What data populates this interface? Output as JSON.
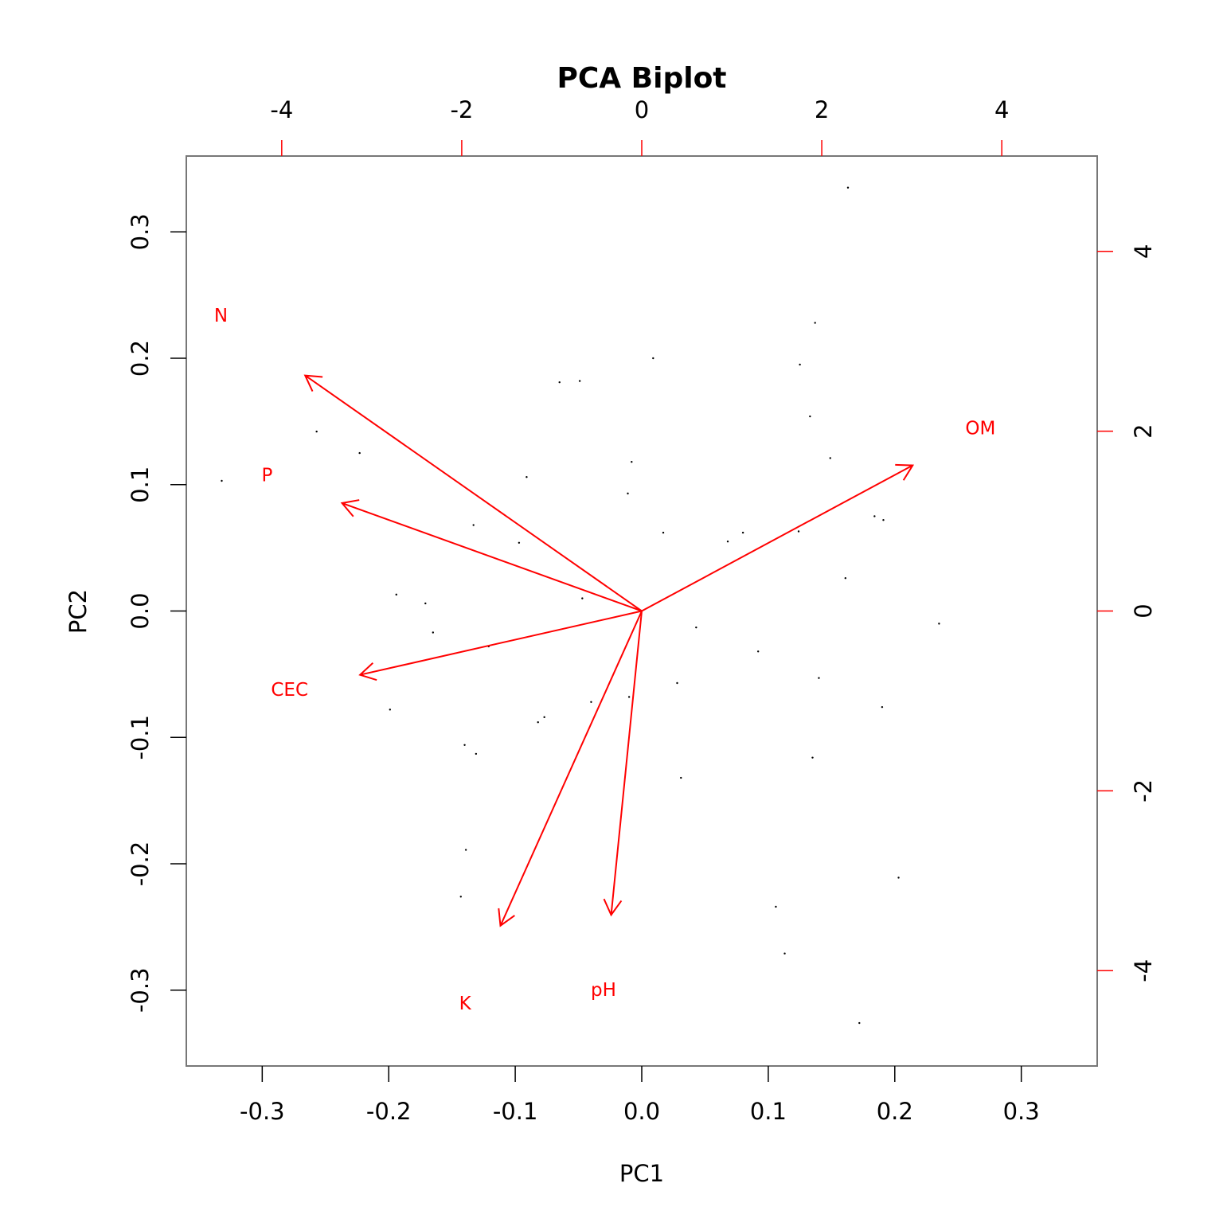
{
  "chart_data": {
    "type": "biplot",
    "title": "PCA Biplot",
    "xlabel": "PC1",
    "ylabel": "PC2",
    "xlim": [
      -0.36,
      0.36
    ],
    "ylim": [
      -0.36,
      0.36
    ],
    "xticks": [
      -0.3,
      -0.2,
      -0.1,
      {
        "value": 0,
        "label": "0.0"
      },
      0.1,
      0.2,
      0.3
    ],
    "yticks": [
      -0.3,
      -0.2,
      -0.1,
      {
        "value": 0,
        "label": "0.0"
      },
      0.1,
      0.2,
      0.3
    ],
    "x2lim": [
      -5.06,
      5.06
    ],
    "y2lim": [
      -5.06,
      5.06
    ],
    "x2ticks": [
      -4,
      -2,
      0,
      2,
      4
    ],
    "y2ticks": [
      -4,
      -2,
      0,
      2,
      4
    ],
    "scores": {
      "color": "#000000",
      "x": [
        0.163,
        0.137,
        0.009,
        -0.065,
        -0.049,
        0.125,
        0.133,
        -0.257,
        -0.223,
        -0.332,
        0.149,
        -0.008,
        -0.091,
        -0.011,
        0.184,
        0.191,
        -0.133,
        0.017,
        0.08,
        0.068,
        0.124,
        -0.097,
        0.161,
        -0.194,
        -0.171,
        -0.047,
        0.235,
        0.043,
        -0.165,
        -0.121,
        0.092,
        0.14,
        0.028,
        -0.01,
        -0.04,
        0.19,
        -0.199,
        -0.077,
        -0.082,
        -0.14,
        -0.131,
        0.135,
        0.031,
        -0.139,
        0.203,
        -0.143,
        0.106,
        0.113,
        0.172
      ],
      "y": [
        0.335,
        0.228,
        0.2,
        0.181,
        0.182,
        0.195,
        0.154,
        0.142,
        0.125,
        0.103,
        0.121,
        0.118,
        0.106,
        0.093,
        0.075,
        0.072,
        0.068,
        0.062,
        0.062,
        0.055,
        0.063,
        0.054,
        0.026,
        0.013,
        0.006,
        0.01,
        -0.01,
        -0.013,
        -0.017,
        -0.028,
        -0.032,
        -0.053,
        -0.057,
        -0.068,
        -0.072,
        -0.076,
        -0.078,
        -0.084,
        -0.088,
        -0.106,
        -0.113,
        -0.116,
        -0.132,
        -0.189,
        -0.211,
        -0.226,
        -0.234,
        -0.271,
        -0.326
      ]
    },
    "loadings": {
      "color": "#ff0000",
      "names": [
        "N",
        "P",
        "CEC",
        "K",
        "pH",
        "OM"
      ],
      "x": [
        -3.74,
        -3.33,
        -3.13,
        -1.57,
        -0.34,
        3.01
      ],
      "y": [
        2.62,
        1.2,
        -0.71,
        -3.5,
        -3.38,
        1.62
      ]
    }
  }
}
